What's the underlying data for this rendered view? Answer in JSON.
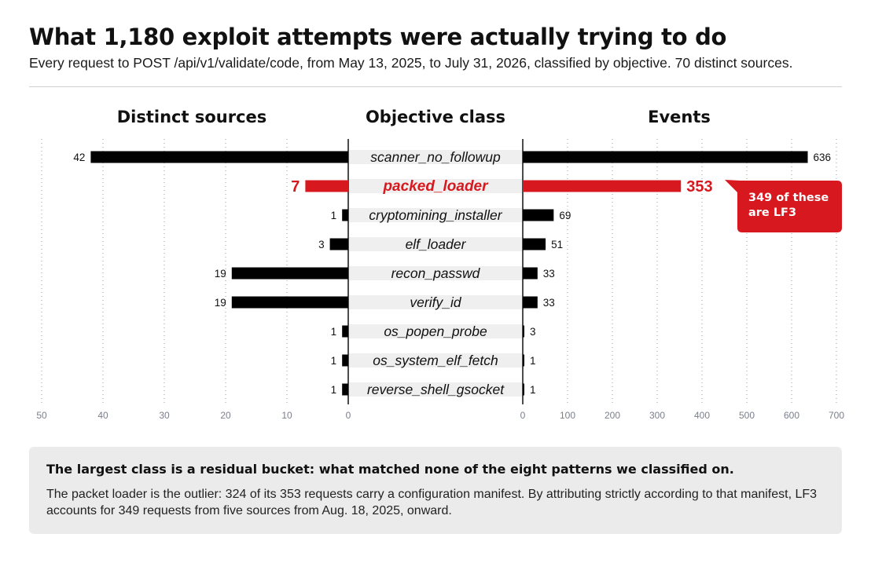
{
  "header": {
    "title": "What 1,180 exploit attempts were actually trying to do",
    "subtitle": "Every request to POST /api/v1/validate/code, from May 13, 2025, to July 31, 2026, classified by objective. 70 distinct sources."
  },
  "colors": {
    "bar": "#000000",
    "highlight": "#d7191f",
    "label_band": "#efefef",
    "axis_tick": "#7a7f8c",
    "grid": "#9a9a9a"
  },
  "chart_data": {
    "type": "bar",
    "orientation": "horizontal",
    "layout": "butterfly",
    "categories": [
      "scanner_no_followup",
      "packed_loader",
      "cryptomining_installer",
      "elf_loader",
      "recon_passwd",
      "verify_id",
      "os_popen_probe",
      "os_system_elf_fetch",
      "reverse_shell_gsocket"
    ],
    "category_header": "Objective class",
    "highlight_index": 1,
    "series": [
      {
        "name": "Distinct sources",
        "side": "left",
        "values": [
          42,
          7,
          1,
          3,
          19,
          19,
          1,
          1,
          1
        ],
        "xlim": [
          0,
          50
        ],
        "ticks": [
          50,
          40,
          30,
          20,
          10,
          0
        ]
      },
      {
        "name": "Events",
        "side": "right",
        "values": [
          636,
          353,
          69,
          51,
          33,
          33,
          3,
          1,
          1
        ],
        "xlim": [
          0,
          700
        ],
        "ticks": [
          0,
          100,
          200,
          300,
          400,
          500,
          600,
          700
        ]
      }
    ],
    "grid": true,
    "annotation": {
      "text": "349 of these are LF3",
      "lines": [
        "349 of these",
        "are LF3"
      ],
      "row": 1,
      "series": "Events"
    }
  },
  "note": {
    "heading": "The largest class is a residual bucket: what matched none of the eight patterns we classified on.",
    "body": "The packet loader is the outlier: 324 of its 353 requests carry a configuration manifest. By attributing strictly according to that manifest, LF3 accounts for 349 requests from five sources from Aug. 18, 2025, onward."
  }
}
